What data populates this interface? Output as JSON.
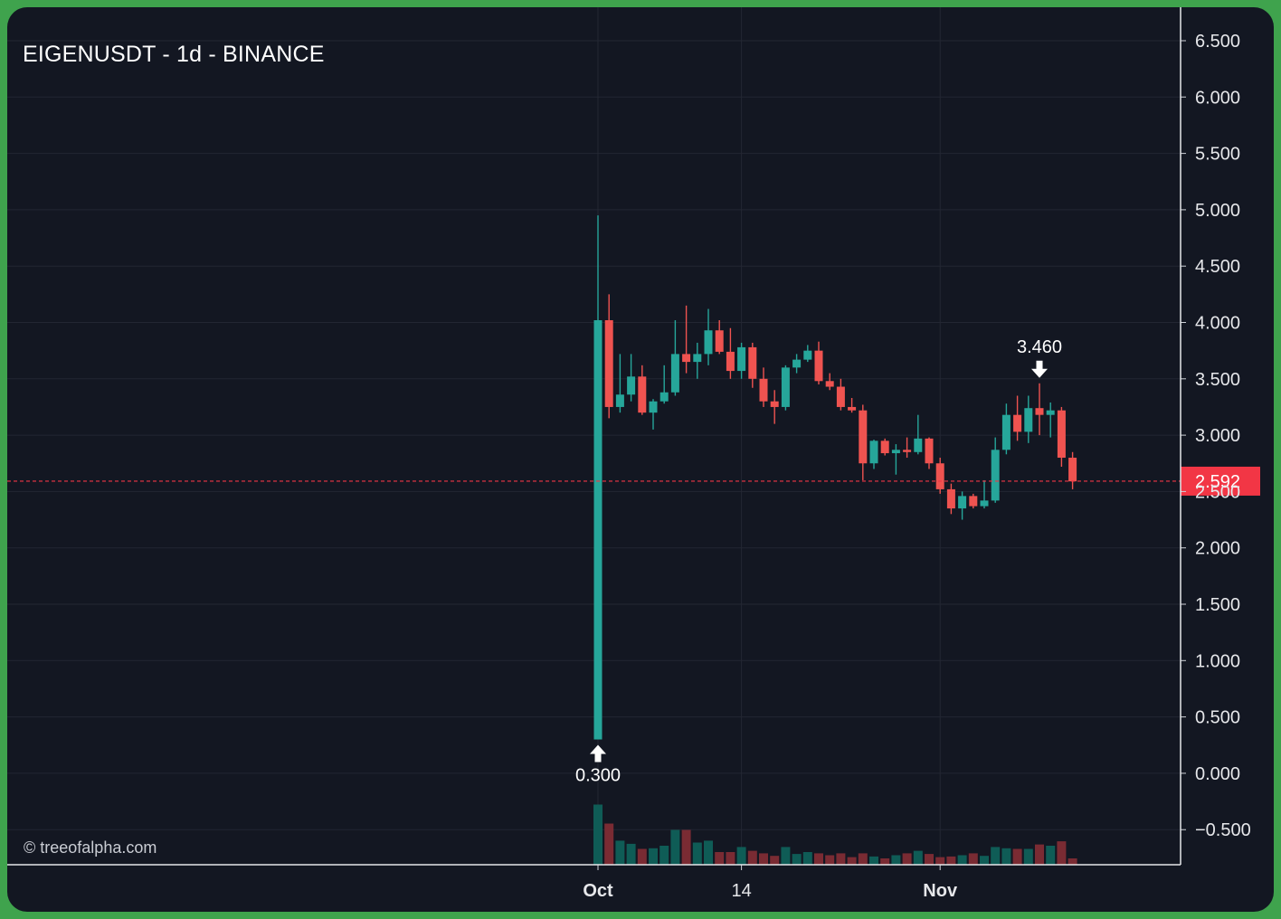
{
  "header": {
    "title": "EIGENUSDT - 1d - BINANCE"
  },
  "watermark": "© treeofalpha.com",
  "colors": {
    "up": "#26a69a",
    "down": "#ef5350",
    "background": "#131722",
    "grid": "#232733",
    "last_price": "#f23645"
  },
  "chart_data": {
    "type": "candlestick",
    "title": "EIGENUSDT - 1d - BINANCE",
    "y_ticks": [
      "6.500",
      "6.000",
      "5.500",
      "5.000",
      "4.500",
      "4.000",
      "3.500",
      "3.000",
      "2.500",
      "2.000",
      "1.500",
      "1.000",
      "0.500",
      "0.000",
      "−0.500"
    ],
    "x_ticks": [
      {
        "label": "Oct",
        "index": 0,
        "bold": true
      },
      {
        "label": "14",
        "index": 13,
        "bold": false
      },
      {
        "label": "Nov",
        "index": 31,
        "bold": true
      }
    ],
    "ylim": [
      -0.5,
      6.5
    ],
    "grid": true,
    "last_price": {
      "value": 2.592,
      "label": "2.592"
    },
    "annotations": [
      {
        "type": "low",
        "index": 0,
        "label": "0.300",
        "arrow": "up"
      },
      {
        "type": "high",
        "index": 40,
        "label": "3.460",
        "arrow": "down"
      }
    ],
    "candles": [
      {
        "date": "Oct 1",
        "o": 0.3,
        "h": 4.95,
        "l": 0.3,
        "c": 4.02,
        "v": 0.95
      },
      {
        "date": "Oct 2",
        "o": 4.02,
        "h": 4.25,
        "l": 3.15,
        "c": 3.25,
        "v": 0.65
      },
      {
        "date": "Oct 3",
        "o": 3.25,
        "h": 3.72,
        "l": 3.2,
        "c": 3.36,
        "v": 0.38
      },
      {
        "date": "Oct 4",
        "o": 3.36,
        "h": 3.72,
        "l": 3.3,
        "c": 3.52,
        "v": 0.33
      },
      {
        "date": "Oct 5",
        "o": 3.52,
        "h": 3.62,
        "l": 3.18,
        "c": 3.2,
        "v": 0.25
      },
      {
        "date": "Oct 6",
        "o": 3.2,
        "h": 3.32,
        "l": 3.05,
        "c": 3.3,
        "v": 0.26
      },
      {
        "date": "Oct 7",
        "o": 3.3,
        "h": 3.62,
        "l": 3.28,
        "c": 3.38,
        "v": 0.3
      },
      {
        "date": "Oct 8",
        "o": 3.38,
        "h": 4.02,
        "l": 3.35,
        "c": 3.72,
        "v": 0.55
      },
      {
        "date": "Oct 9",
        "o": 3.72,
        "h": 4.15,
        "l": 3.55,
        "c": 3.65,
        "v": 0.55
      },
      {
        "date": "Oct 10",
        "o": 3.65,
        "h": 3.82,
        "l": 3.5,
        "c": 3.72,
        "v": 0.35
      },
      {
        "date": "Oct 11",
        "o": 3.72,
        "h": 4.12,
        "l": 3.62,
        "c": 3.93,
        "v": 0.38
      },
      {
        "date": "Oct 12",
        "o": 3.93,
        "h": 4.02,
        "l": 3.72,
        "c": 3.74,
        "v": 0.2
      },
      {
        "date": "Oct 13",
        "o": 3.74,
        "h": 3.95,
        "l": 3.5,
        "c": 3.57,
        "v": 0.2
      },
      {
        "date": "Oct 14",
        "o": 3.57,
        "h": 3.82,
        "l": 3.5,
        "c": 3.78,
        "v": 0.28
      },
      {
        "date": "Oct 15",
        "o": 3.78,
        "h": 3.82,
        "l": 3.42,
        "c": 3.5,
        "v": 0.22
      },
      {
        "date": "Oct 16",
        "o": 3.5,
        "h": 3.6,
        "l": 3.25,
        "c": 3.3,
        "v": 0.18
      },
      {
        "date": "Oct 17",
        "o": 3.3,
        "h": 3.4,
        "l": 3.1,
        "c": 3.25,
        "v": 0.14
      },
      {
        "date": "Oct 18",
        "o": 3.25,
        "h": 3.62,
        "l": 3.22,
        "c": 3.6,
        "v": 0.28
      },
      {
        "date": "Oct 19",
        "o": 3.6,
        "h": 3.72,
        "l": 3.55,
        "c": 3.67,
        "v": 0.17
      },
      {
        "date": "Oct 20",
        "o": 3.67,
        "h": 3.8,
        "l": 3.65,
        "c": 3.75,
        "v": 0.2
      },
      {
        "date": "Oct 21",
        "o": 3.75,
        "h": 3.83,
        "l": 3.45,
        "c": 3.48,
        "v": 0.18
      },
      {
        "date": "Oct 22",
        "o": 3.48,
        "h": 3.55,
        "l": 3.4,
        "c": 3.43,
        "v": 0.15
      },
      {
        "date": "Oct 23",
        "o": 3.43,
        "h": 3.5,
        "l": 3.22,
        "c": 3.25,
        "v": 0.18
      },
      {
        "date": "Oct 24",
        "o": 3.25,
        "h": 3.33,
        "l": 3.2,
        "c": 3.22,
        "v": 0.12
      },
      {
        "date": "Oct 25",
        "o": 3.22,
        "h": 3.27,
        "l": 2.6,
        "c": 2.75,
        "v": 0.18
      },
      {
        "date": "Oct 26",
        "o": 2.75,
        "h": 2.96,
        "l": 2.7,
        "c": 2.95,
        "v": 0.13
      },
      {
        "date": "Oct 27",
        "o": 2.95,
        "h": 2.97,
        "l": 2.82,
        "c": 2.84,
        "v": 0.1
      },
      {
        "date": "Oct 28",
        "o": 2.84,
        "h": 2.92,
        "l": 2.65,
        "c": 2.87,
        "v": 0.15
      },
      {
        "date": "Oct 29",
        "o": 2.87,
        "h": 2.98,
        "l": 2.8,
        "c": 2.85,
        "v": 0.18
      },
      {
        "date": "Oct 30",
        "o": 2.85,
        "h": 3.18,
        "l": 2.83,
        "c": 2.97,
        "v": 0.22
      },
      {
        "date": "Oct 31",
        "o": 2.97,
        "h": 2.98,
        "l": 2.7,
        "c": 2.75,
        "v": 0.17
      },
      {
        "date": "Nov 1",
        "o": 2.75,
        "h": 2.8,
        "l": 2.48,
        "c": 2.52,
        "v": 0.12
      },
      {
        "date": "Nov 2",
        "o": 2.52,
        "h": 2.57,
        "l": 2.3,
        "c": 2.35,
        "v": 0.13
      },
      {
        "date": "Nov 3",
        "o": 2.35,
        "h": 2.5,
        "l": 2.25,
        "c": 2.46,
        "v": 0.15
      },
      {
        "date": "Nov 4",
        "o": 2.46,
        "h": 2.48,
        "l": 2.35,
        "c": 2.37,
        "v": 0.18
      },
      {
        "date": "Nov 5",
        "o": 2.37,
        "h": 2.6,
        "l": 2.35,
        "c": 2.42,
        "v": 0.14
      },
      {
        "date": "Nov 6",
        "o": 2.42,
        "h": 2.98,
        "l": 2.4,
        "c": 2.87,
        "v": 0.28
      },
      {
        "date": "Nov 7",
        "o": 2.87,
        "h": 3.28,
        "l": 2.83,
        "c": 3.18,
        "v": 0.26
      },
      {
        "date": "Nov 8",
        "o": 3.18,
        "h": 3.35,
        "l": 2.95,
        "c": 3.03,
        "v": 0.25
      },
      {
        "date": "Nov 9",
        "o": 3.03,
        "h": 3.35,
        "l": 2.93,
        "c": 3.24,
        "v": 0.25
      },
      {
        "date": "Nov 10",
        "o": 3.24,
        "h": 3.46,
        "l": 3.0,
        "c": 3.18,
        "v": 0.32
      },
      {
        "date": "Nov 11",
        "o": 3.18,
        "h": 3.29,
        "l": 2.98,
        "c": 3.22,
        "v": 0.3
      },
      {
        "date": "Nov 12",
        "o": 3.22,
        "h": 3.25,
        "l": 2.72,
        "c": 2.8,
        "v": 0.37
      },
      {
        "date": "Nov 13",
        "o": 2.8,
        "h": 2.85,
        "l": 2.52,
        "c": 2.59,
        "v": 0.1
      }
    ]
  }
}
